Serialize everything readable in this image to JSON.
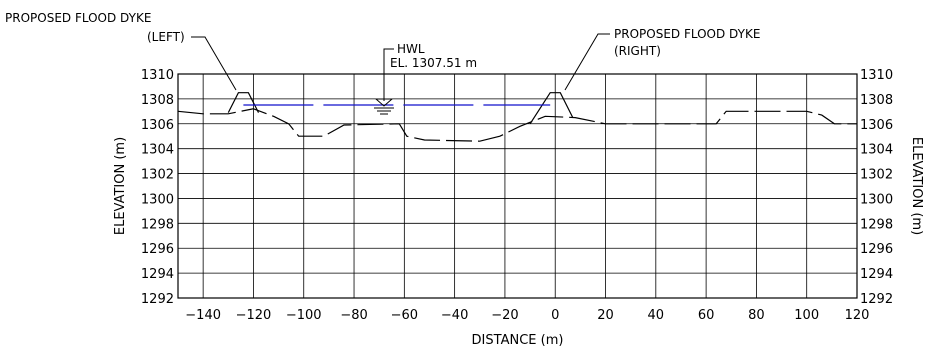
{
  "chart_data": {
    "type": "line",
    "title": "",
    "xlabel": "DISTANCE (m)",
    "ylabel": "ELEVATION (m)",
    "ylabel_right": "ELEVATION (m)",
    "xlim": [
      -150,
      120
    ],
    "ylim": [
      1292,
      1310
    ],
    "xticks": [
      -140,
      -120,
      -100,
      -80,
      -60,
      -40,
      -20,
      0,
      20,
      40,
      60,
      80,
      100,
      120
    ],
    "yticks": [
      1292,
      1294,
      1296,
      1298,
      1300,
      1302,
      1304,
      1306,
      1308,
      1310
    ],
    "grid": true,
    "ground_profile": [
      {
        "x": -150,
        "y": 1307.0
      },
      {
        "x": -140,
        "y": 1306.8
      },
      {
        "x": -130,
        "y": 1306.8
      },
      {
        "x": -120,
        "y": 1307.2
      },
      {
        "x": -112,
        "y": 1306.6
      },
      {
        "x": -106,
        "y": 1306.0
      },
      {
        "x": -102,
        "y": 1305.0
      },
      {
        "x": -92,
        "y": 1305.0
      },
      {
        "x": -84,
        "y": 1305.9
      },
      {
        "x": -62,
        "y": 1306.0
      },
      {
        "x": -59,
        "y": 1305.0
      },
      {
        "x": -52,
        "y": 1304.7
      },
      {
        "x": -30,
        "y": 1304.6
      },
      {
        "x": -22,
        "y": 1305.0
      },
      {
        "x": -14,
        "y": 1305.8
      },
      {
        "x": -4,
        "y": 1306.6
      },
      {
        "x": 8,
        "y": 1306.5
      },
      {
        "x": 20,
        "y": 1306.0
      },
      {
        "x": 64,
        "y": 1306.0
      },
      {
        "x": 68,
        "y": 1307.0
      },
      {
        "x": 100,
        "y": 1307.0
      },
      {
        "x": 106,
        "y": 1306.7
      },
      {
        "x": 111,
        "y": 1306.0
      },
      {
        "x": 120,
        "y": 1306.0
      }
    ],
    "dykes": [
      {
        "name": "left",
        "points": [
          {
            "x": -130,
            "y": 1306.9
          },
          {
            "x": -126,
            "y": 1308.5
          },
          {
            "x": -122,
            "y": 1308.5
          },
          {
            "x": -118,
            "y": 1306.9
          }
        ]
      },
      {
        "name": "right",
        "points": [
          {
            "x": -10,
            "y": 1306.0
          },
          {
            "x": -2,
            "y": 1308.5
          },
          {
            "x": 2,
            "y": 1308.5
          },
          {
            "x": 7,
            "y": 1306.5
          }
        ]
      }
    ],
    "hwl": {
      "y": 1307.51,
      "x_start": -124,
      "x_end": -2
    }
  },
  "annotations": {
    "left_dyke_line1": "PROPOSED FLOOD DYKE",
    "left_dyke_line2": "(LEFT)",
    "right_dyke_line1": "PROPOSED FLOOD DYKE",
    "right_dyke_line2": "(RIGHT)",
    "hwl_line1": "HWL",
    "hwl_line2": "EL. 1307.51 m"
  }
}
